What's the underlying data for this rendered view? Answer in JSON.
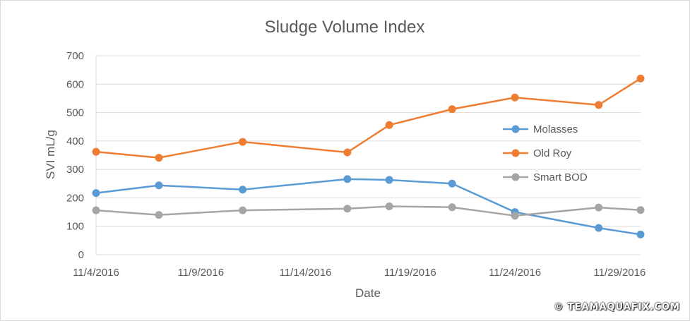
{
  "chart_data": {
    "type": "line",
    "title": "Sludge Volume Index",
    "xlabel": "Date",
    "ylabel": "SVI mL/g",
    "ylim": [
      0,
      700
    ],
    "yticks": [
      0,
      100,
      200,
      300,
      400,
      500,
      600,
      700
    ],
    "xlim": [
      "11/4/2016",
      "11/30/2016"
    ],
    "xticks": [
      "11/4/2016",
      "11/9/2016",
      "11/14/2016",
      "11/19/2016",
      "11/24/2016",
      "11/29/2016"
    ],
    "x": [
      "11/4/2016",
      "11/7/2016",
      "11/11/2016",
      "11/16/2016",
      "11/18/2016",
      "11/21/2016",
      "11/24/2016",
      "11/28/2016",
      "11/30/2016"
    ],
    "grid": "horizontal",
    "legend_position": "right",
    "series": [
      {
        "name": "Molasses",
        "color": "#5b9bd5",
        "values": [
          217,
          244,
          229,
          266,
          263,
          250,
          150,
          94,
          71
        ]
      },
      {
        "name": "Old Roy",
        "color": "#ed7d31",
        "values": [
          362,
          341,
          397,
          360,
          456,
          512,
          553,
          527,
          620
        ]
      },
      {
        "name": "Smart BOD",
        "color": "#a5a5a5",
        "values": [
          156,
          140,
          156,
          162,
          170,
          167,
          137,
          166,
          157
        ]
      }
    ]
  },
  "watermark": "© TEAMAQUAFIX.COM"
}
